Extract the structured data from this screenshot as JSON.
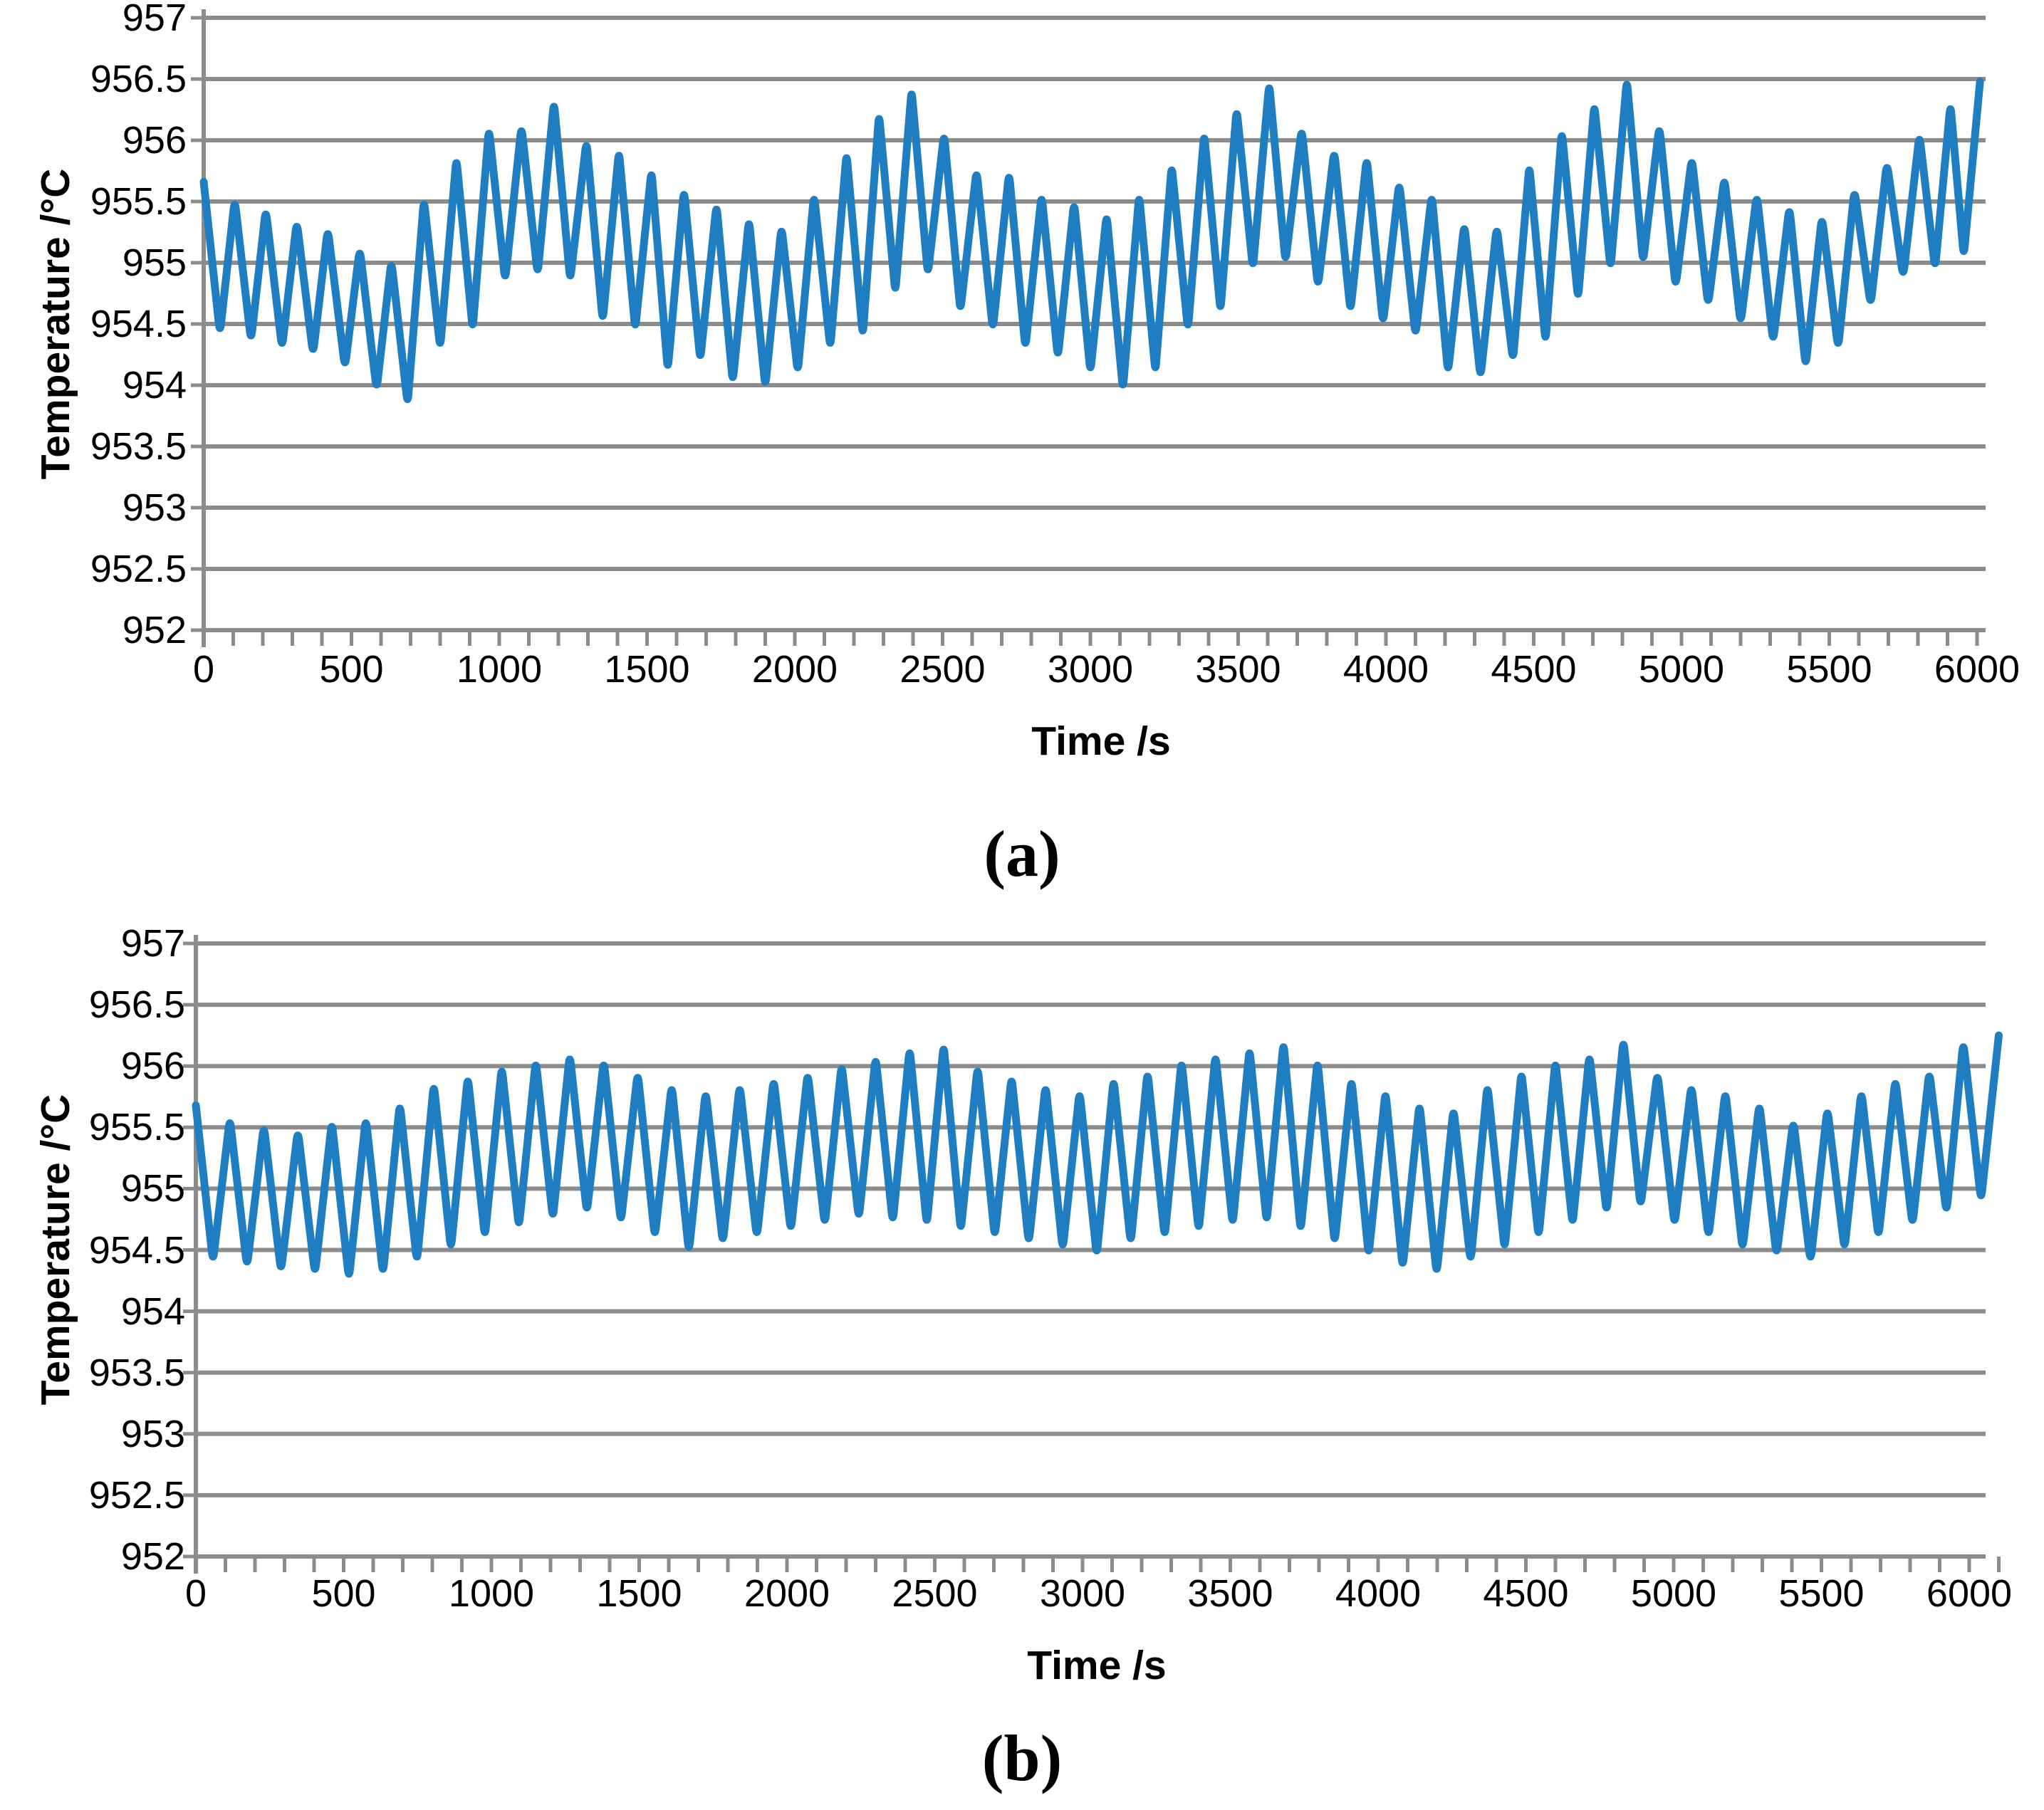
{
  "figure": {
    "caption_a": "(a)",
    "caption_b": "(b)"
  },
  "chart_data": [
    {
      "id": "a",
      "type": "line",
      "caption": "(a)",
      "title": "",
      "xlabel": "Time /s",
      "ylabel": "Temperature /°C",
      "xlim": [
        0,
        6000
      ],
      "ylim": [
        952,
        957
      ],
      "grid": "horizontal",
      "legend": "none",
      "x_major_ticks": [
        0,
        500,
        1000,
        1500,
        2000,
        2500,
        3000,
        3500,
        4000,
        4500,
        5000,
        5500,
        6000
      ],
      "x_minor_step": 100,
      "y_ticks": [
        957,
        956.5,
        956,
        955.5,
        955,
        954.5,
        954,
        953.5,
        953,
        952.5,
        952
      ],
      "y_tick_labels": [
        "957",
        "956.5",
        "956",
        "955.5",
        "955",
        "954.5",
        "954",
        "953.5",
        "953",
        "952.5",
        "952"
      ],
      "line_color": "#1F7EC2",
      "grid_color": "#8C8C8C",
      "series": [
        {
          "name": "temperature",
          "points": [
            [
              0,
              955.66
            ],
            [
              55,
              954.42
            ],
            [
              105,
              955.52
            ],
            [
              160,
              954.36
            ],
            [
              210,
              955.44
            ],
            [
              265,
              954.3
            ],
            [
              315,
              955.34
            ],
            [
              370,
              954.25
            ],
            [
              420,
              955.28
            ],
            [
              478,
              954.14
            ],
            [
              528,
              955.12
            ],
            [
              585,
              953.96
            ],
            [
              635,
              955.02
            ],
            [
              690,
              953.84
            ],
            [
              745,
              955.52
            ],
            [
              800,
              954.3
            ],
            [
              855,
              955.86
            ],
            [
              910,
              954.45
            ],
            [
              965,
              956.1
            ],
            [
              1020,
              954.85
            ],
            [
              1075,
              956.12
            ],
            [
              1130,
              954.9
            ],
            [
              1185,
              956.32
            ],
            [
              1240,
              954.85
            ],
            [
              1295,
              956.0
            ],
            [
              1350,
              954.52
            ],
            [
              1405,
              955.92
            ],
            [
              1460,
              954.45
            ],
            [
              1515,
              955.76
            ],
            [
              1570,
              954.12
            ],
            [
              1625,
              955.6
            ],
            [
              1680,
              954.2
            ],
            [
              1735,
              955.48
            ],
            [
              1790,
              954.02
            ],
            [
              1845,
              955.36
            ],
            [
              1900,
              953.98
            ],
            [
              1955,
              955.3
            ],
            [
              2010,
              954.1
            ],
            [
              2065,
              955.56
            ],
            [
              2120,
              954.3
            ],
            [
              2175,
              955.9
            ],
            [
              2230,
              954.4
            ],
            [
              2285,
              956.22
            ],
            [
              2340,
              954.75
            ],
            [
              2395,
              956.42
            ],
            [
              2450,
              954.9
            ],
            [
              2505,
              956.06
            ],
            [
              2560,
              954.6
            ],
            [
              2615,
              955.76
            ],
            [
              2670,
              954.45
            ],
            [
              2725,
              955.74
            ],
            [
              2780,
              954.3
            ],
            [
              2835,
              955.56
            ],
            [
              2890,
              954.22
            ],
            [
              2945,
              955.5
            ],
            [
              3000,
              954.1
            ],
            [
              3055,
              955.4
            ],
            [
              3110,
              953.96
            ],
            [
              3165,
              955.56
            ],
            [
              3220,
              954.1
            ],
            [
              3275,
              955.8
            ],
            [
              3330,
              954.45
            ],
            [
              3385,
              956.06
            ],
            [
              3440,
              954.6
            ],
            [
              3495,
              956.26
            ],
            [
              3550,
              954.95
            ],
            [
              3605,
              956.47
            ],
            [
              3660,
              955.0
            ],
            [
              3715,
              956.1
            ],
            [
              3770,
              954.8
            ],
            [
              3825,
              955.92
            ],
            [
              3880,
              954.6
            ],
            [
              3935,
              955.86
            ],
            [
              3990,
              954.5
            ],
            [
              4045,
              955.66
            ],
            [
              4100,
              954.4
            ],
            [
              4155,
              955.56
            ],
            [
              4210,
              954.1
            ],
            [
              4265,
              955.32
            ],
            [
              4320,
              954.06
            ],
            [
              4375,
              955.3
            ],
            [
              4430,
              954.2
            ],
            [
              4485,
              955.8
            ],
            [
              4540,
              954.35
            ],
            [
              4595,
              956.08
            ],
            [
              4650,
              954.7
            ],
            [
              4705,
              956.3
            ],
            [
              4760,
              954.95
            ],
            [
              4815,
              956.5
            ],
            [
              4870,
              955.0
            ],
            [
              4925,
              956.12
            ],
            [
              4980,
              954.8
            ],
            [
              5035,
              955.86
            ],
            [
              5090,
              954.65
            ],
            [
              5145,
              955.7
            ],
            [
              5200,
              954.5
            ],
            [
              5255,
              955.56
            ],
            [
              5310,
              954.35
            ],
            [
              5365,
              955.46
            ],
            [
              5420,
              954.15
            ],
            [
              5475,
              955.38
            ],
            [
              5530,
              954.3
            ],
            [
              5585,
              955.6
            ],
            [
              5640,
              954.65
            ],
            [
              5695,
              955.82
            ],
            [
              5750,
              954.88
            ],
            [
              5805,
              956.05
            ],
            [
              5858,
              954.95
            ],
            [
              5910,
              956.3
            ],
            [
              5955,
              955.05
            ],
            [
              6010,
              956.48
            ]
          ]
        }
      ]
    },
    {
      "id": "b",
      "type": "line",
      "caption": "(b)",
      "title": "",
      "xlabel": "Time /s",
      "ylabel": "Temperature /°C",
      "xlim": [
        0,
        6100
      ],
      "ylim": [
        952,
        957
      ],
      "grid": "horizontal",
      "legend": "none",
      "x_major_ticks": [
        0,
        500,
        1000,
        1500,
        2000,
        2500,
        3000,
        3500,
        4000,
        4500,
        5000,
        5500,
        6000
      ],
      "x_minor_step": 100,
      "y_ticks": [
        957,
        956.5,
        956,
        955.5,
        955,
        954.5,
        954,
        953.5,
        953,
        952.5,
        952
      ],
      "y_tick_labels": [
        "957",
        "956.5",
        "956",
        "955.5",
        "955",
        "954.5",
        "954",
        "953.5",
        "953",
        "952.5",
        "952"
      ],
      "line_color": "#1F7EC2",
      "grid_color": "#8C8C8C",
      "series": [
        {
          "name": "temperature",
          "points": [
            [
              0,
              955.68
            ],
            [
              58,
              954.4
            ],
            [
              115,
              955.58
            ],
            [
              173,
              954.36
            ],
            [
              230,
              955.52
            ],
            [
              288,
              954.32
            ],
            [
              345,
              955.48
            ],
            [
              403,
              954.3
            ],
            [
              460,
              955.55
            ],
            [
              518,
              954.26
            ],
            [
              575,
              955.58
            ],
            [
              633,
              954.3
            ],
            [
              690,
              955.7
            ],
            [
              748,
              954.4
            ],
            [
              805,
              955.86
            ],
            [
              863,
              954.5
            ],
            [
              920,
              955.92
            ],
            [
              978,
              954.6
            ],
            [
              1035,
              956.0
            ],
            [
              1093,
              954.68
            ],
            [
              1150,
              956.05
            ],
            [
              1208,
              954.75
            ],
            [
              1265,
              956.1
            ],
            [
              1323,
              954.8
            ],
            [
              1380,
              956.05
            ],
            [
              1438,
              954.72
            ],
            [
              1495,
              955.95
            ],
            [
              1553,
              954.6
            ],
            [
              1610,
              955.85
            ],
            [
              1668,
              954.48
            ],
            [
              1725,
              955.8
            ],
            [
              1783,
              954.55
            ],
            [
              1840,
              955.85
            ],
            [
              1898,
              954.6
            ],
            [
              1955,
              955.9
            ],
            [
              2013,
              954.65
            ],
            [
              2070,
              955.95
            ],
            [
              2128,
              954.7
            ],
            [
              2185,
              956.02
            ],
            [
              2243,
              954.75
            ],
            [
              2300,
              956.08
            ],
            [
              2358,
              954.72
            ],
            [
              2415,
              956.15
            ],
            [
              2473,
              954.7
            ],
            [
              2530,
              956.18
            ],
            [
              2588,
              954.65
            ],
            [
              2645,
              956.0
            ],
            [
              2703,
              954.6
            ],
            [
              2760,
              955.92
            ],
            [
              2818,
              954.55
            ],
            [
              2875,
              955.85
            ],
            [
              2933,
              954.5
            ],
            [
              2990,
              955.8
            ],
            [
              3048,
              954.45
            ],
            [
              3105,
              955.9
            ],
            [
              3163,
              954.55
            ],
            [
              3220,
              955.96
            ],
            [
              3278,
              954.6
            ],
            [
              3335,
              956.05
            ],
            [
              3393,
              954.65
            ],
            [
              3450,
              956.1
            ],
            [
              3508,
              954.7
            ],
            [
              3565,
              956.15
            ],
            [
              3623,
              954.72
            ],
            [
              3680,
              956.2
            ],
            [
              3738,
              954.65
            ],
            [
              3795,
              956.05
            ],
            [
              3853,
              954.55
            ],
            [
              3910,
              955.9
            ],
            [
              3968,
              954.45
            ],
            [
              4025,
              955.8
            ],
            [
              4083,
              954.35
            ],
            [
              4140,
              955.7
            ],
            [
              4198,
              954.3
            ],
            [
              4255,
              955.66
            ],
            [
              4313,
              954.4
            ],
            [
              4370,
              955.85
            ],
            [
              4428,
              954.5
            ],
            [
              4485,
              955.96
            ],
            [
              4543,
              954.6
            ],
            [
              4600,
              956.05
            ],
            [
              4658,
              954.7
            ],
            [
              4715,
              956.1
            ],
            [
              4773,
              954.8
            ],
            [
              4830,
              956.22
            ],
            [
              4888,
              954.85
            ],
            [
              4945,
              955.95
            ],
            [
              5003,
              954.7
            ],
            [
              5060,
              955.85
            ],
            [
              5118,
              954.6
            ],
            [
              5175,
              955.8
            ],
            [
              5233,
              954.5
            ],
            [
              5290,
              955.7
            ],
            [
              5348,
              954.45
            ],
            [
              5405,
              955.56
            ],
            [
              5463,
              954.4
            ],
            [
              5520,
              955.66
            ],
            [
              5578,
              954.5
            ],
            [
              5635,
              955.8
            ],
            [
              5693,
              954.6
            ],
            [
              5750,
              955.9
            ],
            [
              5808,
              954.7
            ],
            [
              5865,
              955.96
            ],
            [
              5923,
              954.8
            ],
            [
              5980,
              956.2
            ],
            [
              6040,
              954.9
            ],
            [
              6100,
              956.25
            ]
          ]
        }
      ]
    }
  ]
}
